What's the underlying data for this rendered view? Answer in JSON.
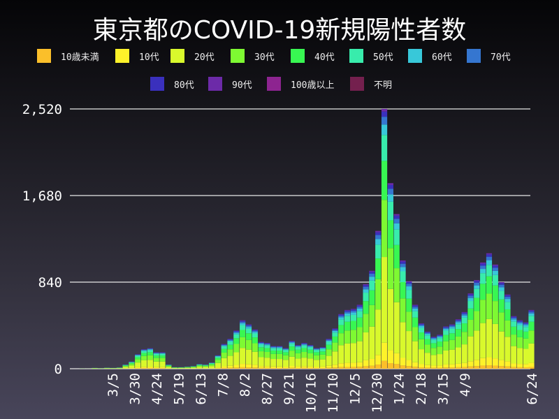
{
  "chart_data": {
    "type": "bar",
    "stacked": true,
    "title": "東京都のCOVID-19新規陽性者数",
    "xlabel": "",
    "ylabel": "",
    "ylim": [
      0,
      2520
    ],
    "yticks": [
      "0",
      "840",
      "1,680",
      "2,520"
    ],
    "ytick_values": [
      0,
      840,
      1680,
      2520
    ],
    "grid": true,
    "legend_position": "top",
    "xtick_labels": [
      "3/5",
      "3/30",
      "4/24",
      "5/19",
      "6/13",
      "7/8",
      "8/2",
      "8/27",
      "9/21",
      "10/16",
      "11/10",
      "12/5",
      "12/30",
      "1/24",
      "2/18",
      "3/15",
      "4/9",
      "6/24"
    ],
    "xtick_dates": [
      "2020-03-05",
      "2020-03-30",
      "2020-04-24",
      "2020-05-19",
      "2020-06-13",
      "2020-07-08",
      "2020-08-02",
      "2020-08-27",
      "2020-09-21",
      "2020-10-16",
      "2020-11-10",
      "2020-12-05",
      "2020-12-30",
      "2021-01-24",
      "2021-02-18",
      "2021-03-15",
      "2021-04-09",
      "2021-06-24"
    ],
    "x": [
      "2020-01-24",
      "2020-01-31",
      "2020-02-07",
      "2020-02-14",
      "2020-02-21",
      "2020-02-28",
      "2020-03-06",
      "2020-03-13",
      "2020-03-20",
      "2020-03-27",
      "2020-04-03",
      "2020-04-10",
      "2020-04-17",
      "2020-04-24",
      "2020-05-01",
      "2020-05-08",
      "2020-05-15",
      "2020-05-22",
      "2020-05-29",
      "2020-06-05",
      "2020-06-12",
      "2020-06-19",
      "2020-06-26",
      "2020-07-03",
      "2020-07-10",
      "2020-07-17",
      "2020-07-24",
      "2020-07-31",
      "2020-08-07",
      "2020-08-14",
      "2020-08-21",
      "2020-08-28",
      "2020-09-04",
      "2020-09-11",
      "2020-09-18",
      "2020-09-25",
      "2020-10-02",
      "2020-10-09",
      "2020-10-16",
      "2020-10-23",
      "2020-10-30",
      "2020-11-06",
      "2020-11-13",
      "2020-11-20",
      "2020-11-27",
      "2020-12-04",
      "2020-12-11",
      "2020-12-18",
      "2020-12-25",
      "2021-01-01",
      "2021-01-08",
      "2021-01-15",
      "2021-01-22",
      "2021-01-29",
      "2021-02-05",
      "2021-02-12",
      "2021-02-19",
      "2021-02-26",
      "2021-03-05",
      "2021-03-12",
      "2021-03-19",
      "2021-03-26",
      "2021-04-02",
      "2021-04-09",
      "2021-04-16",
      "2021-04-23",
      "2021-04-30",
      "2021-05-07",
      "2021-05-14",
      "2021-05-21",
      "2021-05-28",
      "2021-06-04",
      "2021-06-11",
      "2021-06-18",
      "2021-06-24"
    ],
    "totals": [
      0,
      2,
      1,
      8,
      5,
      10,
      8,
      12,
      40,
      70,
      140,
      190,
      200,
      160,
      160,
      40,
      15,
      15,
      20,
      25,
      45,
      40,
      60,
      130,
      240,
      290,
      370,
      470,
      430,
      380,
      260,
      250,
      220,
      220,
      200,
      270,
      230,
      250,
      230,
      200,
      210,
      290,
      390,
      530,
      570,
      580,
      620,
      820,
      950,
      1337,
      2520,
      1800,
      1500,
      1050,
      850,
      620,
      440,
      360,
      310,
      330,
      410,
      430,
      480,
      550,
      730,
      860,
      1030,
      1120,
      1010,
      840,
      720,
      510,
      470,
      450,
      570
    ],
    "series": [
      {
        "name": "10歳未満",
        "color": "#fbbf2a",
        "share": 0.03
      },
      {
        "name": "10代",
        "color": "#fef22a",
        "share": 0.07
      },
      {
        "name": "20代",
        "color": "#d9f92c",
        "share": 0.33
      },
      {
        "name": "30代",
        "color": "#7ef932",
        "share": 0.22
      },
      {
        "name": "40代",
        "color": "#38f752",
        "share": 0.15
      },
      {
        "name": "50代",
        "color": "#38ecac",
        "share": 0.1
      },
      {
        "name": "60代",
        "color": "#38c8d9",
        "share": 0.04
      },
      {
        "name": "70代",
        "color": "#3576d0",
        "share": 0.03
      },
      {
        "name": "80代",
        "color": "#3a30bd",
        "share": 0.02
      },
      {
        "name": "90代",
        "color": "#6c2aa8",
        "share": 0.01
      },
      {
        "name": "100歳以上",
        "color": "#8d2490",
        "share": 0.0
      },
      {
        "name": "不明",
        "color": "#74204e",
        "share": 0.0
      }
    ]
  }
}
